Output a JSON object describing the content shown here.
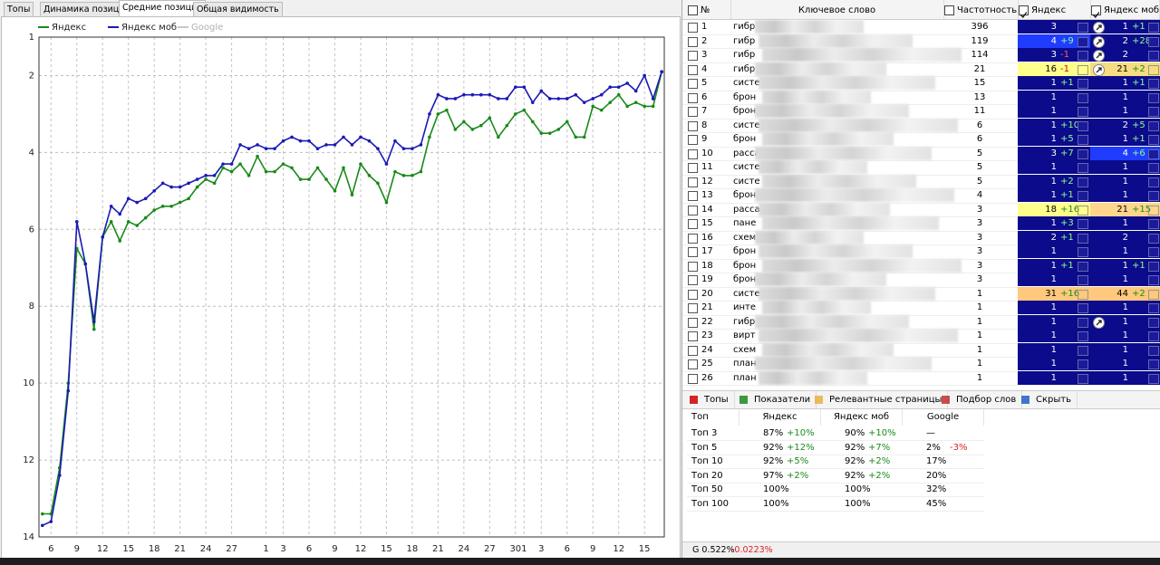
{
  "tabs": [
    "Топы",
    "Динамика позиций",
    "Средние позиции",
    "Общая видимость"
  ],
  "chart_data": {
    "type": "line",
    "x": [
      0,
      1,
      2,
      3,
      4,
      5,
      6,
      7,
      8,
      9,
      10,
      11,
      12,
      13,
      14,
      15,
      16,
      17,
      18,
      19,
      20,
      21,
      22,
      23,
      24,
      25,
      26,
      27,
      28,
      29,
      30,
      31,
      32,
      33,
      34,
      35,
      36,
      37,
      38,
      39,
      40,
      41,
      42,
      43,
      44,
      45,
      46,
      47,
      48,
      49,
      50,
      51,
      52,
      53,
      54,
      55,
      56,
      57,
      58,
      59,
      60,
      61,
      62,
      63,
      64,
      65,
      66,
      67,
      68,
      69,
      70,
      71,
      72
    ],
    "series": [
      {
        "name": "Яндекс",
        "color": "#1a8a1a",
        "values": [
          13.4,
          13.4,
          12.2,
          10.0,
          6.5,
          6.9,
          8.6,
          6.2,
          5.8,
          6.3,
          5.8,
          5.9,
          5.7,
          5.5,
          5.4,
          5.4,
          5.3,
          5.2,
          4.9,
          4.7,
          4.8,
          4.4,
          4.5,
          4.3,
          4.6,
          4.1,
          4.5,
          4.5,
          4.3,
          4.4,
          4.7,
          4.7,
          4.4,
          4.7,
          5.0,
          4.4,
          5.1,
          4.3,
          4.6,
          4.8,
          5.3,
          4.5,
          4.6,
          4.6,
          4.5,
          3.6,
          3.0,
          2.9,
          3.4,
          3.2,
          3.4,
          3.3,
          3.1,
          3.6,
          3.3,
          3.0,
          2.9,
          3.2,
          3.5,
          3.5,
          3.4,
          3.2,
          3.6,
          3.6,
          2.8,
          2.9,
          2.7,
          2.5,
          2.8,
          2.7,
          2.8,
          2.8,
          1.9
        ]
      },
      {
        "name": "Яндекс моб",
        "color": "#1a1ab4",
        "values": [
          13.7,
          13.6,
          12.4,
          10.2,
          5.8,
          6.9,
          8.4,
          6.2,
          5.4,
          5.6,
          5.2,
          5.3,
          5.2,
          5.0,
          4.8,
          4.9,
          4.9,
          4.8,
          4.7,
          4.6,
          4.6,
          4.3,
          4.3,
          3.8,
          3.9,
          3.8,
          3.9,
          3.9,
          3.7,
          3.6,
          3.7,
          3.7,
          3.9,
          3.8,
          3.8,
          3.6,
          3.8,
          3.6,
          3.7,
          3.9,
          4.3,
          3.7,
          3.9,
          3.9,
          3.8,
          3.0,
          2.5,
          2.6,
          2.6,
          2.5,
          2.5,
          2.5,
          2.5,
          2.6,
          2.6,
          2.3,
          2.3,
          2.7,
          2.4,
          2.6,
          2.6,
          2.6,
          2.5,
          2.7,
          2.6,
          2.5,
          2.3,
          2.3,
          2.2,
          2.4,
          2.0,
          2.6,
          1.9
        ]
      },
      {
        "name": "Google",
        "color": "#c8c8c8",
        "values": [
          null,
          null,
          null,
          null,
          null,
          null,
          null,
          null,
          null,
          null,
          null,
          null,
          null,
          null,
          null,
          null,
          null,
          null,
          null,
          null,
          null,
          null,
          null,
          null,
          null,
          null,
          null,
          null,
          null,
          null,
          null,
          null,
          null,
          null,
          null,
          null,
          null,
          null,
          null,
          null,
          null,
          null,
          null,
          null,
          null,
          null,
          null,
          null,
          null,
          null,
          null,
          null,
          null,
          null,
          null,
          null,
          null,
          null,
          null,
          null,
          null,
          null,
          null,
          null,
          null,
          null,
          null,
          null,
          null,
          null,
          null,
          null,
          null
        ]
      }
    ],
    "xlim": [
      -0.4,
      72.3
    ],
    "xticks": [
      {
        "value": 1,
        "label": "6"
      },
      {
        "value": 4,
        "label": "9"
      },
      {
        "value": 7,
        "label": "12"
      },
      {
        "value": 10,
        "label": "15"
      },
      {
        "value": 13,
        "label": "18"
      },
      {
        "value": 16,
        "label": "21"
      },
      {
        "value": 19,
        "label": "24"
      },
      {
        "value": 22,
        "label": "27"
      },
      {
        "value": 26,
        "label": "1"
      },
      {
        "value": 28,
        "label": "3"
      },
      {
        "value": 31,
        "label": "6"
      },
      {
        "value": 34,
        "label": "9"
      },
      {
        "value": 37,
        "label": "12"
      },
      {
        "value": 40,
        "label": "15"
      },
      {
        "value": 43,
        "label": "18"
      },
      {
        "value": 46,
        "label": "21"
      },
      {
        "value": 49,
        "label": "24"
      },
      {
        "value": 52,
        "label": "27"
      },
      {
        "value": 55,
        "label": "30"
      },
      {
        "value": 56,
        "label": "1"
      },
      {
        "value": 58,
        "label": "3"
      },
      {
        "value": 61,
        "label": "6"
      },
      {
        "value": 64,
        "label": "9"
      },
      {
        "value": 67,
        "label": "12"
      },
      {
        "value": 70,
        "label": "15"
      }
    ],
    "ylim": [
      1,
      14
    ],
    "y_reversed": true,
    "yticks": [
      1,
      2,
      4,
      6,
      8,
      10,
      12,
      14
    ],
    "grid": true
  },
  "keyword_table": {
    "columns": [
      "№",
      "Ключевое слово",
      "Частотность",
      "Яндекс",
      "Яндекс моб"
    ],
    "rows": [
      {
        "n": 1,
        "keyword": "гибр",
        "freq": 396,
        "yandex": {
          "pos": 3,
          "color": "#0b0b8c"
        },
        "mobile": {
          "pos": 1,
          "delta": "+1",
          "color": "#0b0b8c",
          "icon": "rocket"
        }
      },
      {
        "n": 2,
        "keyword": "гибр",
        "freq": 119,
        "yandex": {
          "pos": 4,
          "delta": "+9",
          "color": "#1f3cff"
        },
        "mobile": {
          "pos": 2,
          "delta": "+28",
          "color": "#0b0b8c",
          "icon": "rocket"
        }
      },
      {
        "n": 3,
        "keyword": "гибр",
        "freq": 114,
        "yandex": {
          "pos": 3,
          "delta": "-1",
          "color": "#0b0b8c"
        },
        "mobile": {
          "pos": 2,
          "color": "#0b0b8c",
          "icon": "rocket"
        }
      },
      {
        "n": 4,
        "keyword": "гибр",
        "freq": 21,
        "yandex": {
          "pos": 16,
          "delta": "-1",
          "color": "#ffff8c"
        },
        "mobile": {
          "pos": 21,
          "delta": "+2",
          "color": "#f7dc80",
          "icon": "rocket"
        }
      },
      {
        "n": 5,
        "keyword": "систе",
        "freq": 15,
        "yandex": {
          "pos": 1,
          "delta": "+1",
          "color": "#0b0b8c"
        },
        "mobile": {
          "pos": 1,
          "delta": "+1",
          "color": "#0b0b8c"
        }
      },
      {
        "n": 6,
        "keyword": "брон",
        "freq": 13,
        "yandex": {
          "pos": 1,
          "color": "#0b0b8c"
        },
        "mobile": {
          "pos": 1,
          "color": "#0b0b8c"
        }
      },
      {
        "n": 7,
        "keyword": "брон",
        "freq": 11,
        "yandex": {
          "pos": 1,
          "color": "#0b0b8c"
        },
        "mobile": {
          "pos": 1,
          "color": "#0b0b8c"
        }
      },
      {
        "n": 8,
        "keyword": "систе",
        "freq": 6,
        "yandex": {
          "pos": 1,
          "delta": "+10",
          "color": "#0b0b8c"
        },
        "mobile": {
          "pos": 2,
          "delta": "+5",
          "color": "#0b0b8c"
        }
      },
      {
        "n": 9,
        "keyword": "брон",
        "freq": 6,
        "yandex": {
          "pos": 1,
          "delta": "+5",
          "color": "#0b0b8c"
        },
        "mobile": {
          "pos": 1,
          "delta": "+1",
          "color": "#0b0b8c"
        }
      },
      {
        "n": 10,
        "keyword": "расса",
        "freq": 5,
        "yandex": {
          "pos": 3,
          "delta": "+7",
          "color": "#0b0b8c"
        },
        "mobile": {
          "pos": 4,
          "delta": "+6",
          "color": "#1f3cff"
        }
      },
      {
        "n": 11,
        "keyword": "систе",
        "freq": 5,
        "yandex": {
          "pos": 1,
          "color": "#0b0b8c"
        },
        "mobile": {
          "pos": 1,
          "color": "#0b0b8c"
        }
      },
      {
        "n": 12,
        "keyword": "систе",
        "freq": 5,
        "yandex": {
          "pos": 1,
          "delta": "+2",
          "color": "#0b0b8c"
        },
        "mobile": {
          "pos": 1,
          "color": "#0b0b8c"
        }
      },
      {
        "n": 13,
        "keyword": "брон",
        "freq": 4,
        "yandex": {
          "pos": 1,
          "delta": "+1",
          "color": "#0b0b8c"
        },
        "mobile": {
          "pos": 1,
          "color": "#0b0b8c"
        }
      },
      {
        "n": 14,
        "keyword": "расса",
        "freq": 3,
        "yandex": {
          "pos": 18,
          "delta": "+16",
          "color": "#ffff8c"
        },
        "mobile": {
          "pos": 21,
          "delta": "+15",
          "color": "#ffd68c"
        }
      },
      {
        "n": 15,
        "keyword": "пане",
        "freq": 3,
        "yandex": {
          "pos": 1,
          "delta": "+3",
          "color": "#0b0b8c"
        },
        "mobile": {
          "pos": 1,
          "color": "#0b0b8c"
        }
      },
      {
        "n": 16,
        "keyword": "схем",
        "freq": 3,
        "yandex": {
          "pos": 2,
          "delta": "+1",
          "color": "#0b0b8c"
        },
        "mobile": {
          "pos": 2,
          "color": "#0b0b8c"
        }
      },
      {
        "n": 17,
        "keyword": "брон",
        "freq": 3,
        "yandex": {
          "pos": 1,
          "color": "#0b0b8c"
        },
        "mobile": {
          "pos": 1,
          "color": "#0b0b8c"
        }
      },
      {
        "n": 18,
        "keyword": "брон",
        "freq": 3,
        "yandex": {
          "pos": 1,
          "delta": "+1",
          "color": "#0b0b8c"
        },
        "mobile": {
          "pos": 1,
          "delta": "+1",
          "color": "#0b0b8c"
        }
      },
      {
        "n": 19,
        "keyword": "брон",
        "freq": 3,
        "yandex": {
          "pos": 1,
          "color": "#0b0b8c"
        },
        "mobile": {
          "pos": 1,
          "color": "#0b0b8c"
        }
      },
      {
        "n": 20,
        "keyword": "систе",
        "freq": 1,
        "yandex": {
          "pos": 31,
          "delta": "+16",
          "color": "#ffc87c"
        },
        "mobile": {
          "pos": 44,
          "delta": "+2",
          "color": "#ffc87c"
        }
      },
      {
        "n": 21,
        "keyword": "инте",
        "freq": 1,
        "yandex": {
          "pos": 1,
          "color": "#0b0b8c"
        },
        "mobile": {
          "pos": 1,
          "color": "#0b0b8c"
        }
      },
      {
        "n": 22,
        "keyword": "гибр",
        "freq": 1,
        "yandex": {
          "pos": 1,
          "color": "#0b0b8c"
        },
        "mobile": {
          "pos": 1,
          "color": "#0b0b8c",
          "icon": "rocket"
        }
      },
      {
        "n": 23,
        "keyword": "вирт",
        "freq": 1,
        "yandex": {
          "pos": 1,
          "color": "#0b0b8c"
        },
        "mobile": {
          "pos": 1,
          "color": "#0b0b8c"
        }
      },
      {
        "n": 24,
        "keyword": "схем",
        "freq": 1,
        "yandex": {
          "pos": 1,
          "color": "#0b0b8c"
        },
        "mobile": {
          "pos": 1,
          "color": "#0b0b8c"
        }
      },
      {
        "n": 25,
        "keyword": "план",
        "freq": 1,
        "yandex": {
          "pos": 1,
          "color": "#0b0b8c"
        },
        "mobile": {
          "pos": 1,
          "color": "#0b0b8c"
        }
      },
      {
        "n": 26,
        "keyword": "план",
        "freq": 1,
        "yandex": {
          "pos": 1,
          "color": "#0b0b8c"
        },
        "mobile": {
          "pos": 1,
          "color": "#0b0b8c"
        }
      }
    ]
  },
  "bottom_tabs": [
    "Топы",
    "Показатели",
    "Релевантные страницы",
    "Подбор слов",
    "Скрыть"
  ],
  "summary": {
    "columns": [
      "Топ",
      "Яндекс",
      "Яндекс моб",
      "Google"
    ],
    "rows": [
      {
        "label": "Топ 3",
        "cells": [
          {
            "value": "87%",
            "delta": "+10%"
          },
          {
            "value": "90%",
            "delta": "+10%"
          },
          {
            "value": "—"
          }
        ]
      },
      {
        "label": "Топ 5",
        "cells": [
          {
            "value": "92%",
            "delta": "+12%"
          },
          {
            "value": "92%",
            "delta": "+7%"
          },
          {
            "value": "2%",
            "delta": "-3%"
          }
        ]
      },
      {
        "label": "Топ 10",
        "cells": [
          {
            "value": "92%",
            "delta": "+5%"
          },
          {
            "value": "92%",
            "delta": "+2%"
          },
          {
            "value": "17%"
          }
        ]
      },
      {
        "label": "Топ 20",
        "cells": [
          {
            "value": "97%",
            "delta": "+2%"
          },
          {
            "value": "92%",
            "delta": "+2%"
          },
          {
            "value": "20%"
          }
        ]
      },
      {
        "label": "Топ 50",
        "cells": [
          {
            "value": "100%"
          },
          {
            "value": "100%"
          },
          {
            "value": "32%"
          }
        ]
      },
      {
        "label": "Топ 100",
        "cells": [
          {
            "value": "100%"
          },
          {
            "value": "100%"
          },
          {
            "value": "45%"
          }
        ]
      }
    ]
  },
  "status": {
    "google": "G 0.522%",
    "delta": "-0.0223%"
  }
}
